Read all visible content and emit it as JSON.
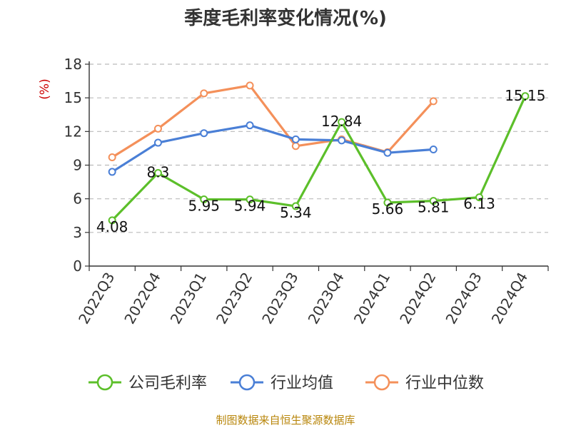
{
  "chart_data": {
    "type": "line",
    "title": "季度毛利率变化情况(%)",
    "ylabel": "(%)",
    "categories": [
      "2022Q3",
      "2022Q4",
      "2023Q1",
      "2023Q2",
      "2023Q3",
      "2023Q4",
      "2024Q1",
      "2024Q2",
      "2024Q3",
      "2024Q4"
    ],
    "ylim": [
      0,
      18
    ],
    "yticks": [
      0,
      3,
      6,
      9,
      12,
      15,
      18
    ],
    "grid": true,
    "legend_position": "bottom",
    "series": [
      {
        "name": "公司毛利率",
        "color": "#5cbf2a",
        "values": [
          4.08,
          8.3,
          5.95,
          5.94,
          5.34,
          12.84,
          5.66,
          5.81,
          6.13,
          15.15
        ],
        "labels": [
          "4.08",
          "8.3",
          "5.95",
          "5.94",
          "5.34",
          "12.84",
          "5.66",
          "5.81",
          "6.13",
          "15.15"
        ]
      },
      {
        "name": "行业均值",
        "color": "#4a7fd6",
        "values": [
          8.4,
          11.0,
          11.85,
          12.55,
          11.3,
          11.2,
          10.1,
          10.4,
          null,
          null
        ]
      },
      {
        "name": "行业中位数",
        "color": "#f4905a",
        "values": [
          9.7,
          12.25,
          15.4,
          16.1,
          10.7,
          11.3,
          10.15,
          14.7,
          null,
          null
        ]
      }
    ]
  },
  "footer": {
    "source": "制图数据来自恒生聚源数据库"
  }
}
